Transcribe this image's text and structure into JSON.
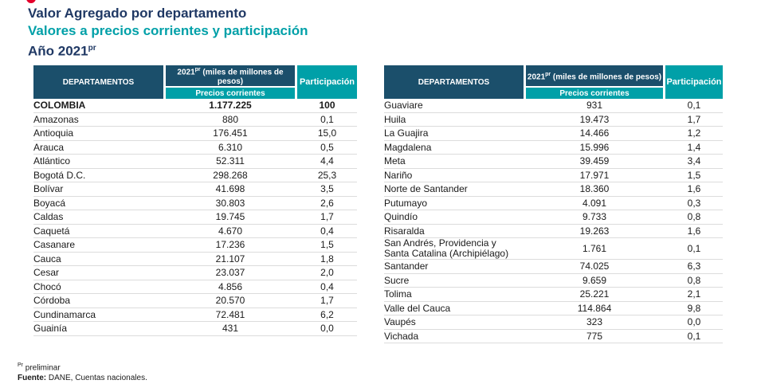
{
  "header": {
    "title": "Valor Agregado por departamento",
    "subtitle": "Valores a precios corrientes y participación",
    "year_label": "Año 2021",
    "year_sup": "pr"
  },
  "columns": {
    "departamentos": "DEPARTAMENTOS",
    "year_prefix": "2021",
    "year_sup": "pr",
    "year_suffix": " (miles de millones de pesos)",
    "precios": "Precios corrientes",
    "participacion": "Participación"
  },
  "left_rows": [
    {
      "name": "COLOMBIA",
      "value": "1.177.225",
      "pct": "100"
    },
    {
      "name": "Amazonas",
      "value": "880",
      "pct": "0,1"
    },
    {
      "name": "Antioquia",
      "value": "176.451",
      "pct": "15,0"
    },
    {
      "name": "Arauca",
      "value": "6.310",
      "pct": "0,5"
    },
    {
      "name": "Atlántico",
      "value": "52.311",
      "pct": "4,4"
    },
    {
      "name": "Bogotá D.C.",
      "value": "298.268",
      "pct": "25,3"
    },
    {
      "name": "Bolívar",
      "value": "41.698",
      "pct": "3,5"
    },
    {
      "name": "Boyacá",
      "value": "30.803",
      "pct": "2,6"
    },
    {
      "name": "Caldas",
      "value": "19.745",
      "pct": "1,7"
    },
    {
      "name": "Caquetá",
      "value": "4.670",
      "pct": "0,4"
    },
    {
      "name": "Casanare",
      "value": "17.236",
      "pct": "1,5"
    },
    {
      "name": "Cauca",
      "value": "21.107",
      "pct": "1,8"
    },
    {
      "name": "Cesar",
      "value": "23.037",
      "pct": "2,0"
    },
    {
      "name": "Chocó",
      "value": "4.856",
      "pct": "0,4"
    },
    {
      "name": "Córdoba",
      "value": "20.570",
      "pct": "1,7"
    },
    {
      "name": "Cundinamarca",
      "value": "72.481",
      "pct": "6,2"
    },
    {
      "name": "Guainía",
      "value": "431",
      "pct": "0,0"
    }
  ],
  "right_rows": [
    {
      "name": "Guaviare",
      "value": "931",
      "pct": "0,1"
    },
    {
      "name": "Huila",
      "value": "19.473",
      "pct": "1,7"
    },
    {
      "name": "La Guajira",
      "value": "14.466",
      "pct": "1,2"
    },
    {
      "name": "Magdalena",
      "value": "15.996",
      "pct": "1,4"
    },
    {
      "name": "Meta",
      "value": "39.459",
      "pct": "3,4"
    },
    {
      "name": "Nariño",
      "value": "17.971",
      "pct": "1,5"
    },
    {
      "name": "Norte de Santander",
      "value": "18.360",
      "pct": "1,6"
    },
    {
      "name": "Putumayo",
      "value": "4.091",
      "pct": "0,3"
    },
    {
      "name": "Quindío",
      "value": "9.733",
      "pct": "0,8"
    },
    {
      "name": "Risaralda",
      "value": "19.263",
      "pct": "1,6"
    },
    {
      "name": "San Andrés, Providencia y Santa Catalina (Archipiélago)",
      "value": "1.761",
      "pct": "0,1"
    },
    {
      "name": "Santander",
      "value": "74.025",
      "pct": "6,3"
    },
    {
      "name": "Sucre",
      "value": "9.659",
      "pct": "0,8"
    },
    {
      "name": "Tolima",
      "value": "25.221",
      "pct": "2,1"
    },
    {
      "name": "Valle del Cauca",
      "value": "114.864",
      "pct": "9,8"
    },
    {
      "name": "Vaupés",
      "value": "323",
      "pct": "0,0"
    },
    {
      "name": "Vichada",
      "value": "775",
      "pct": "0,1"
    }
  ],
  "footer": {
    "pr_sup": "Pr",
    "pr_text": " preliminar",
    "source_label": "Fuente:",
    "source_text": " DANE, Cuentas nacionales."
  }
}
